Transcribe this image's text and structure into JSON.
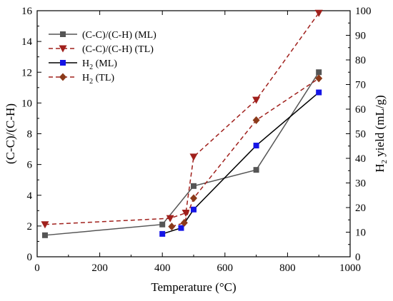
{
  "chart_data": {
    "type": "line",
    "xlabel": "Temperature (°C)",
    "ylabel_left": "(C-C)/(C-H)",
    "ylabel_right_prefix": "H",
    "ylabel_right_sub": "2",
    "ylabel_right_suffix": " yield (mL/g)",
    "xlim": [
      0,
      1000
    ],
    "ylim_left": [
      0,
      16
    ],
    "ylim_right": [
      0,
      100
    ],
    "xticks": [
      0,
      200,
      400,
      600,
      800,
      1000
    ],
    "yticks_left": [
      0,
      2,
      4,
      6,
      8,
      10,
      12,
      14,
      16
    ],
    "yticks_right": [
      0,
      10,
      20,
      30,
      40,
      50,
      60,
      70,
      80,
      90,
      100
    ],
    "grid": false,
    "legend_position": "top-left",
    "series": [
      {
        "name": "(C-C)/(C-H) (ML)",
        "label_prefix": "(C-C)/(C-H) (ML)",
        "label_sub": "",
        "label_suffix": "",
        "axis": "left",
        "color": "#555555",
        "line_style": "solid",
        "marker": "square",
        "x": [
          25,
          400,
          500,
          700,
          900
        ],
        "y": [
          1.4,
          2.1,
          4.6,
          5.65,
          12.0
        ]
      },
      {
        "name": "(C-C)/(C-H) (TL)",
        "label_prefix": "(C-C)/(C-H) (TL)",
        "label_sub": "",
        "label_suffix": "",
        "axis": "left",
        "color": "#a0201c",
        "line_style": "dashed",
        "marker": "triangle-down",
        "x": [
          25,
          425,
          475,
          500,
          700,
          900
        ],
        "y": [
          2.1,
          2.5,
          2.85,
          6.5,
          10.2,
          15.85
        ]
      },
      {
        "name": "H2 (ML)",
        "label_prefix": "H",
        "label_sub": "2",
        "label_suffix": " (ML)",
        "axis": "right",
        "color": "#000000",
        "marker_color": "#1515e6",
        "line_style": "solid",
        "marker": "square",
        "x": [
          400,
          460,
          500,
          700,
          900
        ],
        "y": [
          9.3,
          11.7,
          19.2,
          45.2,
          66.8
        ]
      },
      {
        "name": "H2 (TL)",
        "label_prefix": "H",
        "label_sub": "2",
        "label_suffix": " (TL)",
        "axis": "right",
        "color": "#a0201c",
        "marker_color": "#8b3a1a",
        "line_style": "dashed",
        "marker": "diamond",
        "x": [
          430,
          470,
          500,
          700,
          900
        ],
        "y": [
          12.3,
          13.8,
          23.8,
          55.5,
          72.5
        ]
      }
    ]
  }
}
